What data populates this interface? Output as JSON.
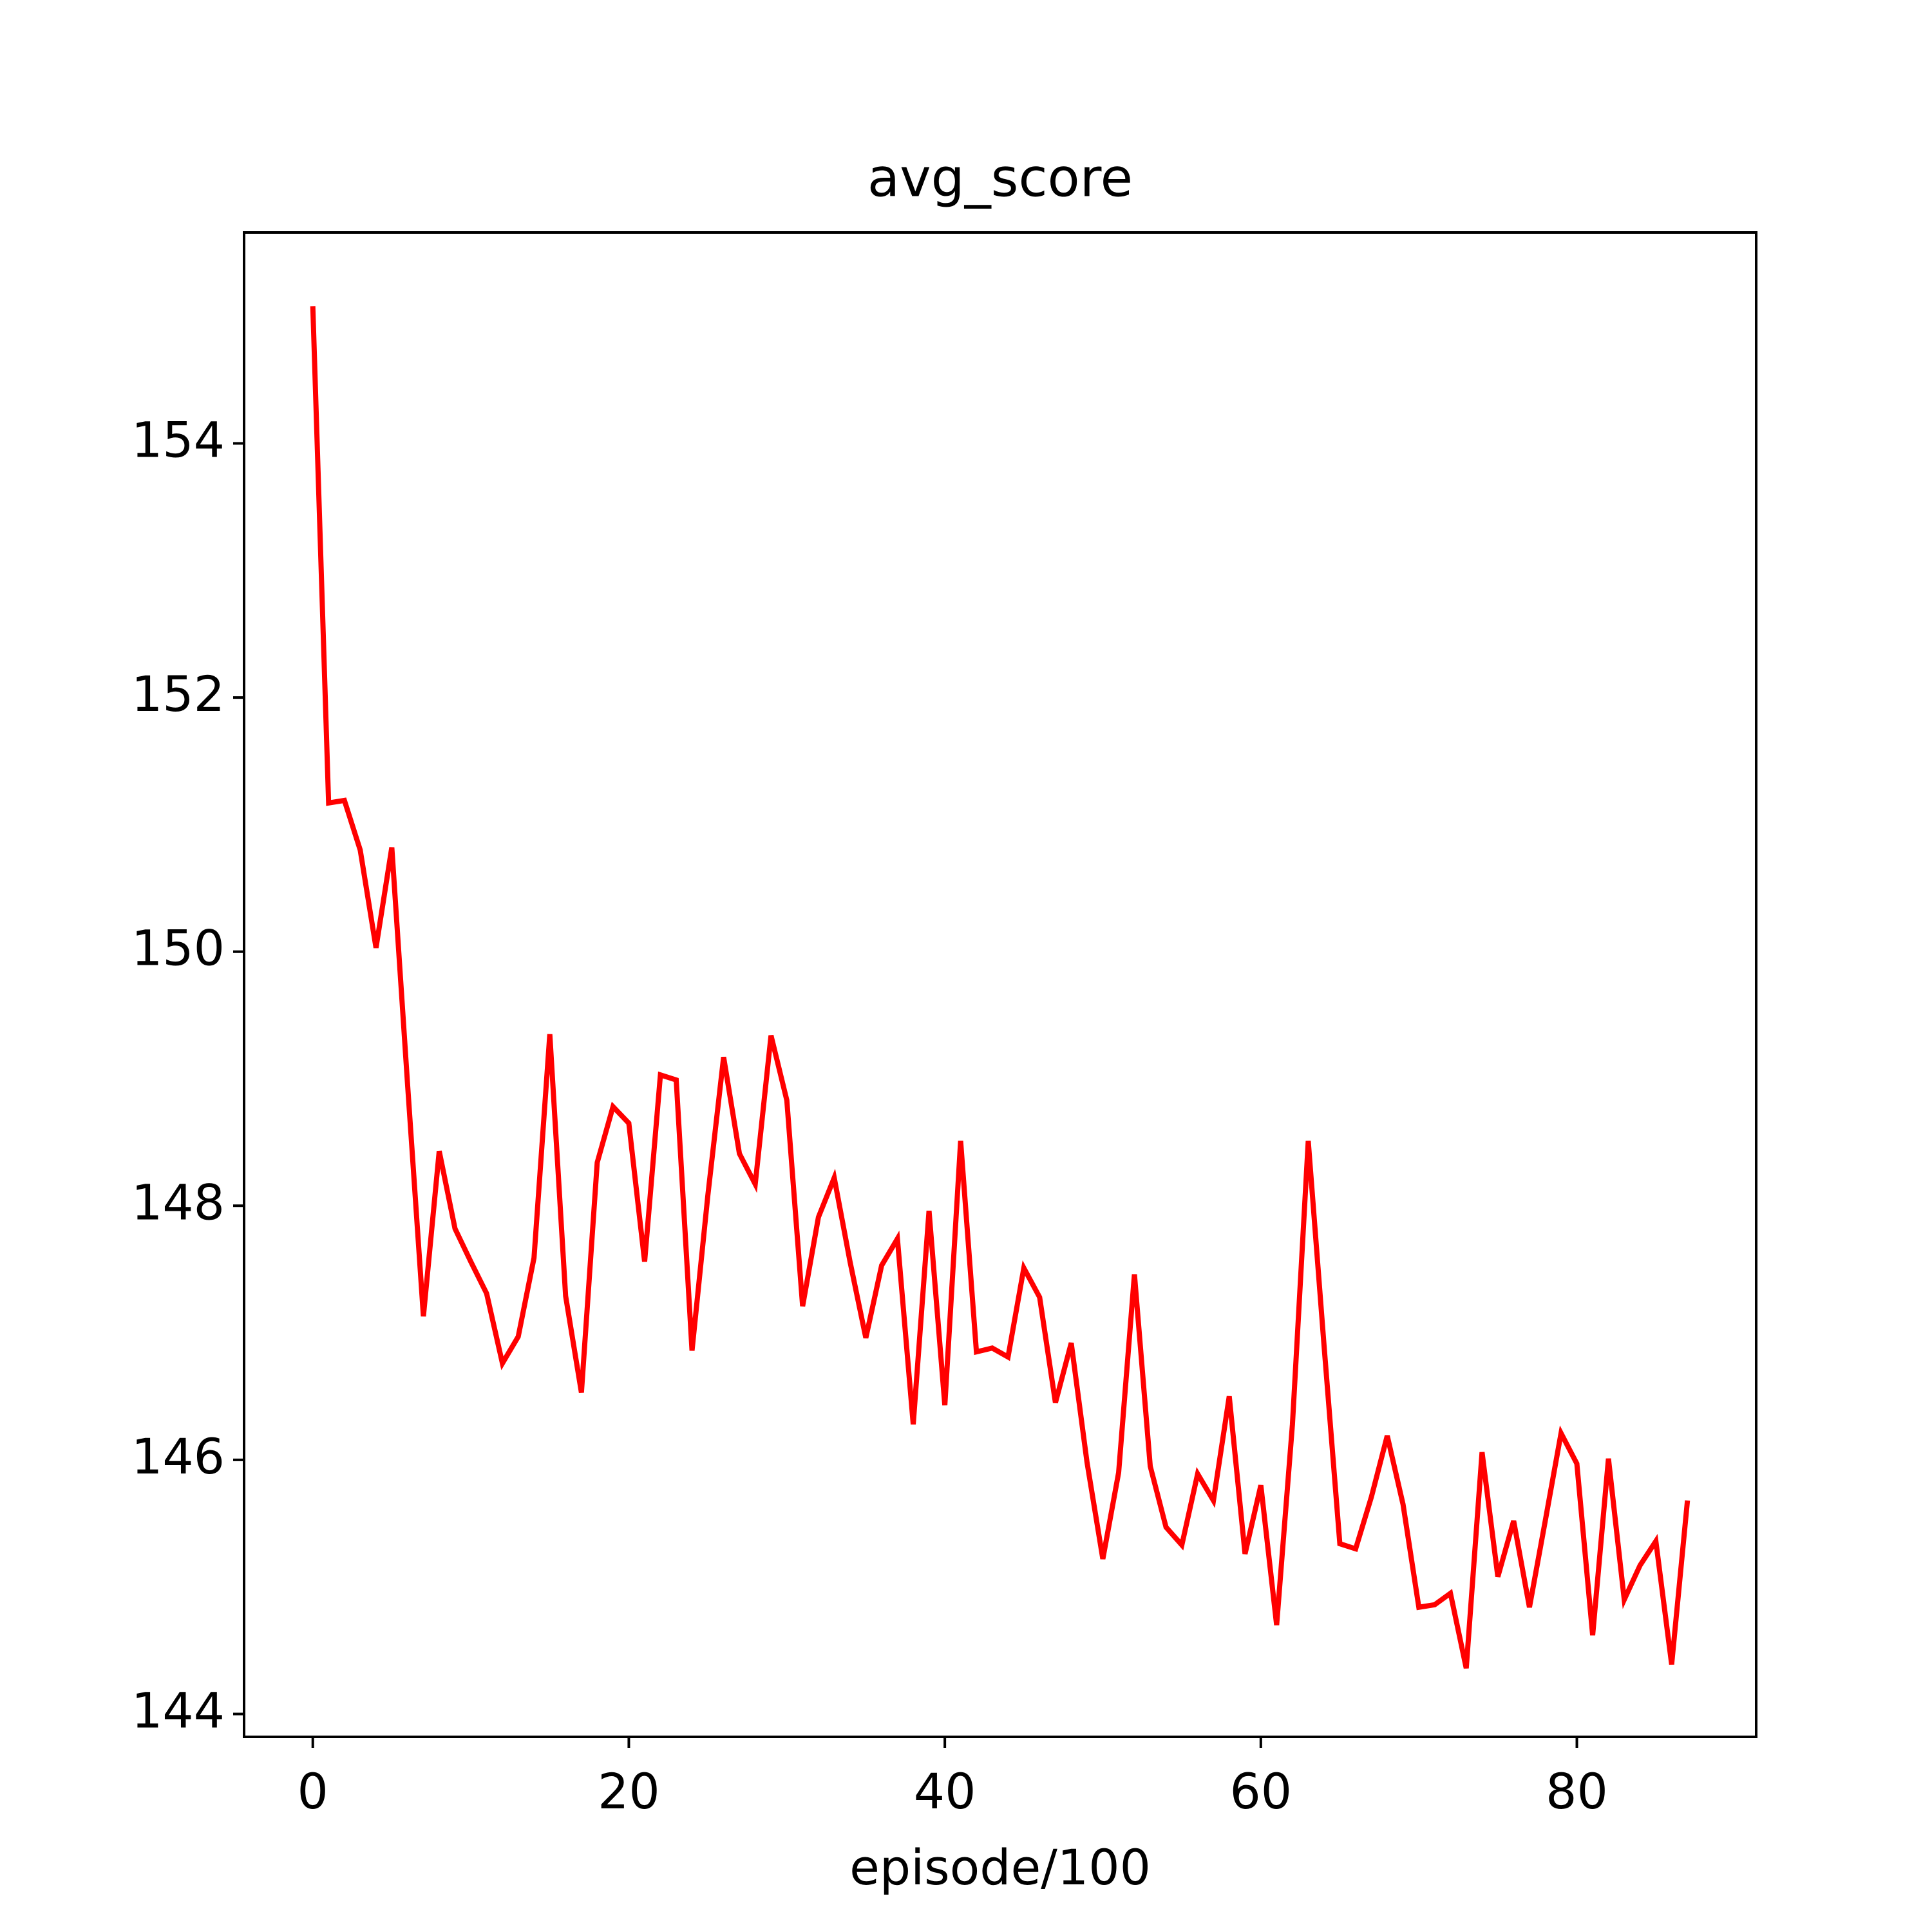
{
  "chart_data": {
    "type": "line",
    "title": "avg_score",
    "x_label": "episode/100",
    "x": [
      0,
      1,
      2,
      3,
      4,
      5,
      6,
      7,
      8,
      9,
      10,
      11,
      12,
      13,
      14,
      15,
      16,
      17,
      18,
      19,
      20,
      21,
      22,
      23,
      24,
      25,
      26,
      27,
      28,
      29,
      30,
      31,
      32,
      33,
      34,
      35,
      36,
      37,
      38,
      39,
      40,
      41,
      42,
      43,
      44,
      45,
      46,
      47,
      48,
      49,
      50,
      51,
      52,
      53,
      54,
      55,
      56,
      57,
      58,
      59,
      60,
      61,
      62,
      63,
      64,
      65,
      66,
      67,
      68,
      69,
      70,
      71,
      72,
      73,
      74,
      75,
      76,
      77,
      78,
      79,
      80,
      81,
      82,
      83,
      84,
      85,
      86,
      87
    ],
    "series": [
      {
        "name": "avg_score",
        "color": "#ff0000",
        "values": [
          155.08,
          151.17,
          151.19,
          150.8,
          150.03,
          150.82,
          148.95,
          147.13,
          148.43,
          147.82,
          147.56,
          147.31,
          146.76,
          146.97,
          147.59,
          149.35,
          147.29,
          146.53,
          148.34,
          148.78,
          148.65,
          147.56,
          149.03,
          148.99,
          146.86,
          148.08,
          149.17,
          148.41,
          148.17,
          149.34,
          148.83,
          147.21,
          147.91,
          148.22,
          147.56,
          146.96,
          147.53,
          147.74,
          146.28,
          147.96,
          146.43,
          148.51,
          146.85,
          146.88,
          146.81,
          147.51,
          147.28,
          146.45,
          146.92,
          145.98,
          145.22,
          145.9,
          147.46,
          145.95,
          145.47,
          145.33,
          145.89,
          145.68,
          146.5,
          145.26,
          145.8,
          144.7,
          146.28,
          148.51,
          146.9,
          145.34,
          145.3,
          145.71,
          146.19,
          145.65,
          144.84,
          144.86,
          144.95,
          144.36,
          146.06,
          145.08,
          145.52,
          144.84,
          145.52,
          146.21,
          145.97,
          144.62,
          146.01,
          144.9,
          145.17,
          145.36,
          144.39,
          145.68
        ]
      }
    ],
    "xlim": [
      -4.35,
      91.35
    ],
    "ylim": [
      143.82,
      155.66
    ],
    "xticks": [
      0,
      20,
      40,
      60,
      80
    ],
    "yticks": [
      144,
      146,
      148,
      150,
      152,
      154
    ]
  }
}
